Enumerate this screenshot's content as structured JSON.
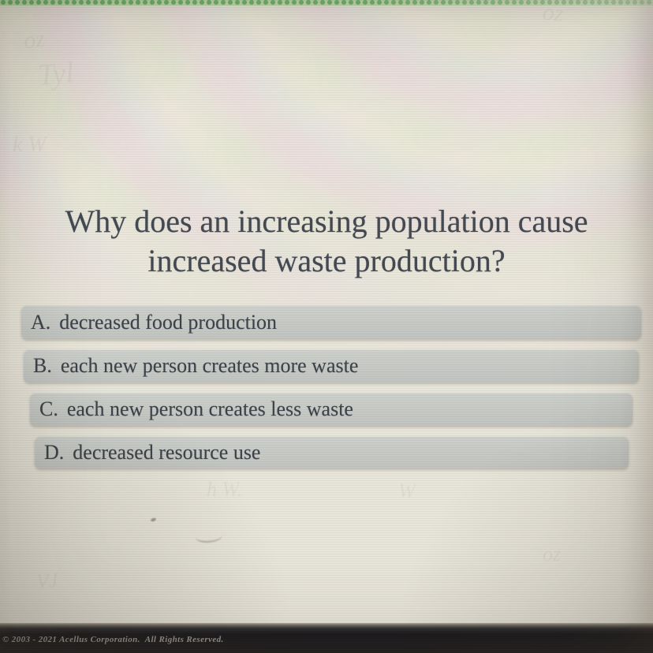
{
  "colors": {
    "background_cream": "#e8e5da",
    "top_strip_green": "#69b465",
    "top_strip_green_light": "#bfdfb0",
    "option_bar_gray": "#c6c9c5",
    "question_text": "#424851",
    "option_text": "#3b4148",
    "footer_background": "#19181b",
    "footer_text": "#9d978b"
  },
  "question": {
    "line1": "Why does an increasing population cause",
    "line2": "increased waste production?"
  },
  "options": [
    {
      "letter": "A.",
      "text": "decreased food production"
    },
    {
      "letter": "B.",
      "text": "each new person creates more waste"
    },
    {
      "letter": "C.",
      "text": "each new person creates less waste"
    },
    {
      "letter": "D.",
      "text": "decreased resource use"
    }
  ],
  "footer": {
    "copyright": "© 2003 - 2021 Acellus Corporation.  All Rights Reserved."
  },
  "watermarks": [
    "oz",
    "Tyl",
    "k W",
    "oz",
    "h W.",
    "W",
    "VJ",
    "oz"
  ]
}
